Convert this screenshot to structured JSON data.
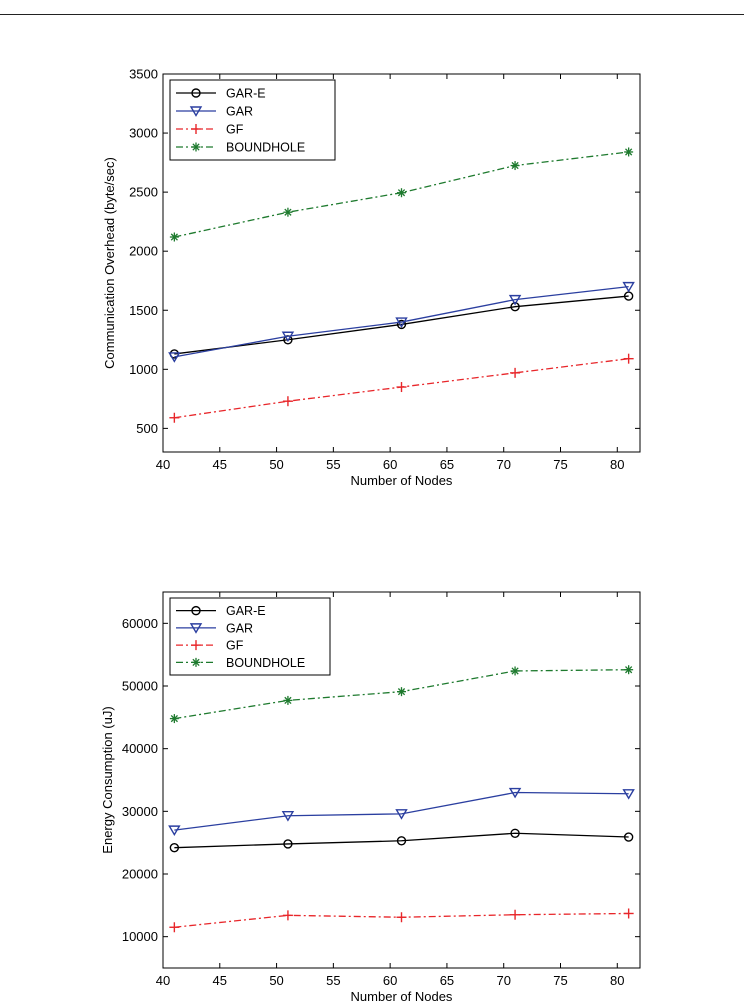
{
  "chart_data": [
    {
      "type": "line",
      "title": "",
      "xlabel": "Number of Nodes",
      "ylabel": "Communication Overhead (byte/sec)",
      "xlim": [
        40,
        82
      ],
      "ylim": [
        300,
        3500
      ],
      "xticks": [
        40,
        45,
        50,
        55,
        60,
        65,
        70,
        75,
        80
      ],
      "yticks": [
        500,
        1000,
        1500,
        2000,
        2500,
        3000,
        3500
      ],
      "grid": false,
      "legend_position": "top-left",
      "x": [
        41,
        51,
        61,
        71,
        81
      ],
      "series": [
        {
          "name": "GAR-E",
          "values": [
            1130,
            1250,
            1380,
            1530,
            1620
          ],
          "color": "#000000",
          "marker": "circle",
          "dash": "solid"
        },
        {
          "name": "GAR",
          "values": [
            1105,
            1280,
            1400,
            1590,
            1700
          ],
          "color": "#2b3fa0",
          "marker": "triangle-down",
          "dash": "solid"
        },
        {
          "name": "GF",
          "values": [
            590,
            730,
            850,
            970,
            1090
          ],
          "color": "#e8262a",
          "marker": "plus",
          "dash": "dashdot"
        },
        {
          "name": "BOUNDHOLE",
          "values": [
            2120,
            2330,
            2495,
            2725,
            2840
          ],
          "color": "#1e7a2e",
          "marker": "asterisk",
          "dash": "dashdot"
        }
      ]
    },
    {
      "type": "line",
      "title": "",
      "xlabel": "Number of Nodes",
      "ylabel": "Energy Consumption (uJ)",
      "xlim": [
        40,
        82
      ],
      "ylim": [
        5000,
        65000
      ],
      "xticks": [
        40,
        45,
        50,
        55,
        60,
        65,
        70,
        75,
        80
      ],
      "yticks": [
        10000,
        20000,
        30000,
        40000,
        50000,
        60000
      ],
      "grid": false,
      "legend_position": "top-left",
      "x": [
        41,
        51,
        61,
        71,
        81
      ],
      "series": [
        {
          "name": "GAR-E",
          "values": [
            24200,
            24800,
            25300,
            26500,
            25900
          ],
          "color": "#000000",
          "marker": "circle",
          "dash": "solid"
        },
        {
          "name": "GAR",
          "values": [
            27000,
            29300,
            29600,
            33000,
            32800
          ],
          "color": "#2b3fa0",
          "marker": "triangle-down",
          "dash": "solid"
        },
        {
          "name": "GF",
          "values": [
            11500,
            13400,
            13100,
            13500,
            13700
          ],
          "color": "#e8262a",
          "marker": "plus",
          "dash": "dashdot"
        },
        {
          "name": "BOUNDHOLE",
          "values": [
            44800,
            47700,
            49100,
            52400,
            52600
          ],
          "color": "#1e7a2e",
          "marker": "asterisk",
          "dash": "dashdot"
        }
      ]
    }
  ]
}
